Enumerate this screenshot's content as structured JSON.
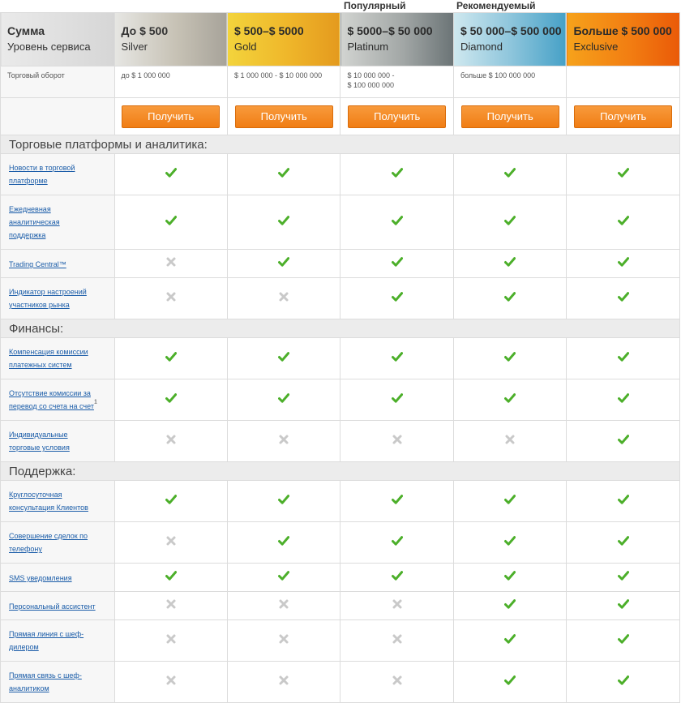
{
  "top_labels": {
    "popular": "Популярный",
    "recommended": "Рекомендуемый"
  },
  "header": {
    "amount_title": "Сумма",
    "level_title": "Уровень сервиса",
    "tiers": [
      {
        "amount": "До $ 500",
        "level": "Silver"
      },
      {
        "amount": "$ 500–$ 5000",
        "level": "Gold"
      },
      {
        "amount": "$ 5000–$ 50 000",
        "level": "Platinum"
      },
      {
        "amount": "$ 50 000–$ 500 000",
        "level": "Diamond"
      },
      {
        "amount": "Больше $ 500 000",
        "level": "Exclusive"
      }
    ]
  },
  "turnover": {
    "label": "Торговый оборот",
    "values": [
      "до $ 1 000 000",
      "$ 1 000 000 - $ 10 000 000",
      "$ 10 000 000 -",
      "больше $ 100 000 000",
      ""
    ],
    "platinum_line2": "$ 100 000 000"
  },
  "button_label": "Получить",
  "sections": {
    "platforms": "Торговые платформы и аналитика:",
    "finance": "Финансы:",
    "support": "Поддержка:"
  },
  "features": {
    "f1": {
      "line1": "Новости в торговой",
      "line2": "платформе"
    },
    "f2": {
      "line1": "Ежедневная",
      "line2": "аналитическая",
      "line3": "поддержка"
    },
    "f3": {
      "line1": "Trading Central™"
    },
    "f4": {
      "line1": "Индикатор настроений",
      "line2": "участников рынка"
    },
    "f5": {
      "line1": "Компенсация комиссии",
      "line2": "платежных систем"
    },
    "f6": {
      "line1": "Отсутствие комиссии за",
      "line2": "перевод со счета на счет",
      "sup": "1"
    },
    "f7": {
      "line1": "Индивидуальные",
      "line2": "торговые условия"
    },
    "f8": {
      "line1": "Круглосуточная",
      "line2": "консультация Клиентов"
    },
    "f9": {
      "line1": "Совершение сделок по",
      "line2": "телефону"
    },
    "f10": {
      "line1": "SMS уведомления"
    },
    "f11": {
      "line1": "Персональный ассистент"
    },
    "f12": {
      "line1": "Прямая линия с шеф-",
      "line2": "дилером"
    },
    "f13": {
      "line1": "Прямая связь с шеф-",
      "line2": "аналитиком"
    }
  },
  "availability": {
    "f1": [
      true,
      true,
      true,
      true,
      true
    ],
    "f2": [
      true,
      true,
      true,
      true,
      true
    ],
    "f3": [
      false,
      true,
      true,
      true,
      true
    ],
    "f4": [
      false,
      false,
      true,
      true,
      true
    ],
    "f5": [
      true,
      true,
      true,
      true,
      true
    ],
    "f6": [
      true,
      true,
      true,
      true,
      true
    ],
    "f7": [
      false,
      false,
      false,
      false,
      true
    ],
    "f8": [
      true,
      true,
      true,
      true,
      true
    ],
    "f9": [
      false,
      true,
      true,
      true,
      true
    ],
    "f10": [
      true,
      true,
      true,
      true,
      true
    ],
    "f11": [
      false,
      false,
      false,
      true,
      true
    ],
    "f12": [
      false,
      false,
      false,
      true,
      true
    ],
    "f13": [
      false,
      false,
      false,
      true,
      true
    ]
  },
  "colors": {
    "check": "#4caf2a",
    "cross": "#c9c9c9",
    "button": "#f07d14",
    "link": "#1a5ca8"
  }
}
